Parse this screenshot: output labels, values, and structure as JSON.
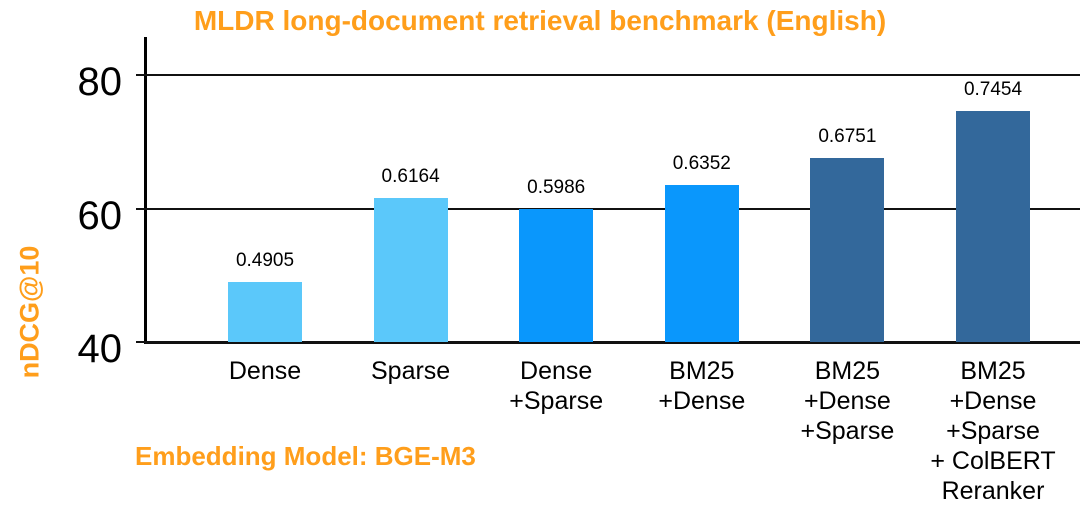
{
  "chart_data": {
    "type": "bar",
    "title": "MLDR long-document retrieval benchmark (English)",
    "ylabel": "nDCG@10",
    "xlabel": "",
    "annotation": "Embedding Model: BGE-M3",
    "categories": [
      "Dense",
      "Sparse",
      "Dense\n+Sparse",
      "BM25\n+Dense",
      "BM25\n+Dense\n+Sparse",
      "BM25\n+Dense\n+Sparse\n+ ColBERT\nReranker"
    ],
    "values": [
      0.4905,
      0.6164,
      0.5986,
      0.6352,
      0.6751,
      0.7454
    ],
    "value_labels": [
      "0.4905",
      "0.6164",
      "0.5986",
      "0.6352",
      "0.6751",
      "0.7454"
    ],
    "bar_colors": [
      "#5BC8FA",
      "#5BC8FA",
      "#0A97FC",
      "#0A97FC",
      "#33689B",
      "#33689B"
    ],
    "yticks": [
      40,
      60,
      80
    ],
    "ylim": [
      40,
      85
    ],
    "value_axis_scale": 100,
    "grid": "horizontal",
    "legend": "none",
    "accent_color": "#FF9E1B",
    "text_color": "#000000",
    "background_color": "#FFFFFF"
  }
}
